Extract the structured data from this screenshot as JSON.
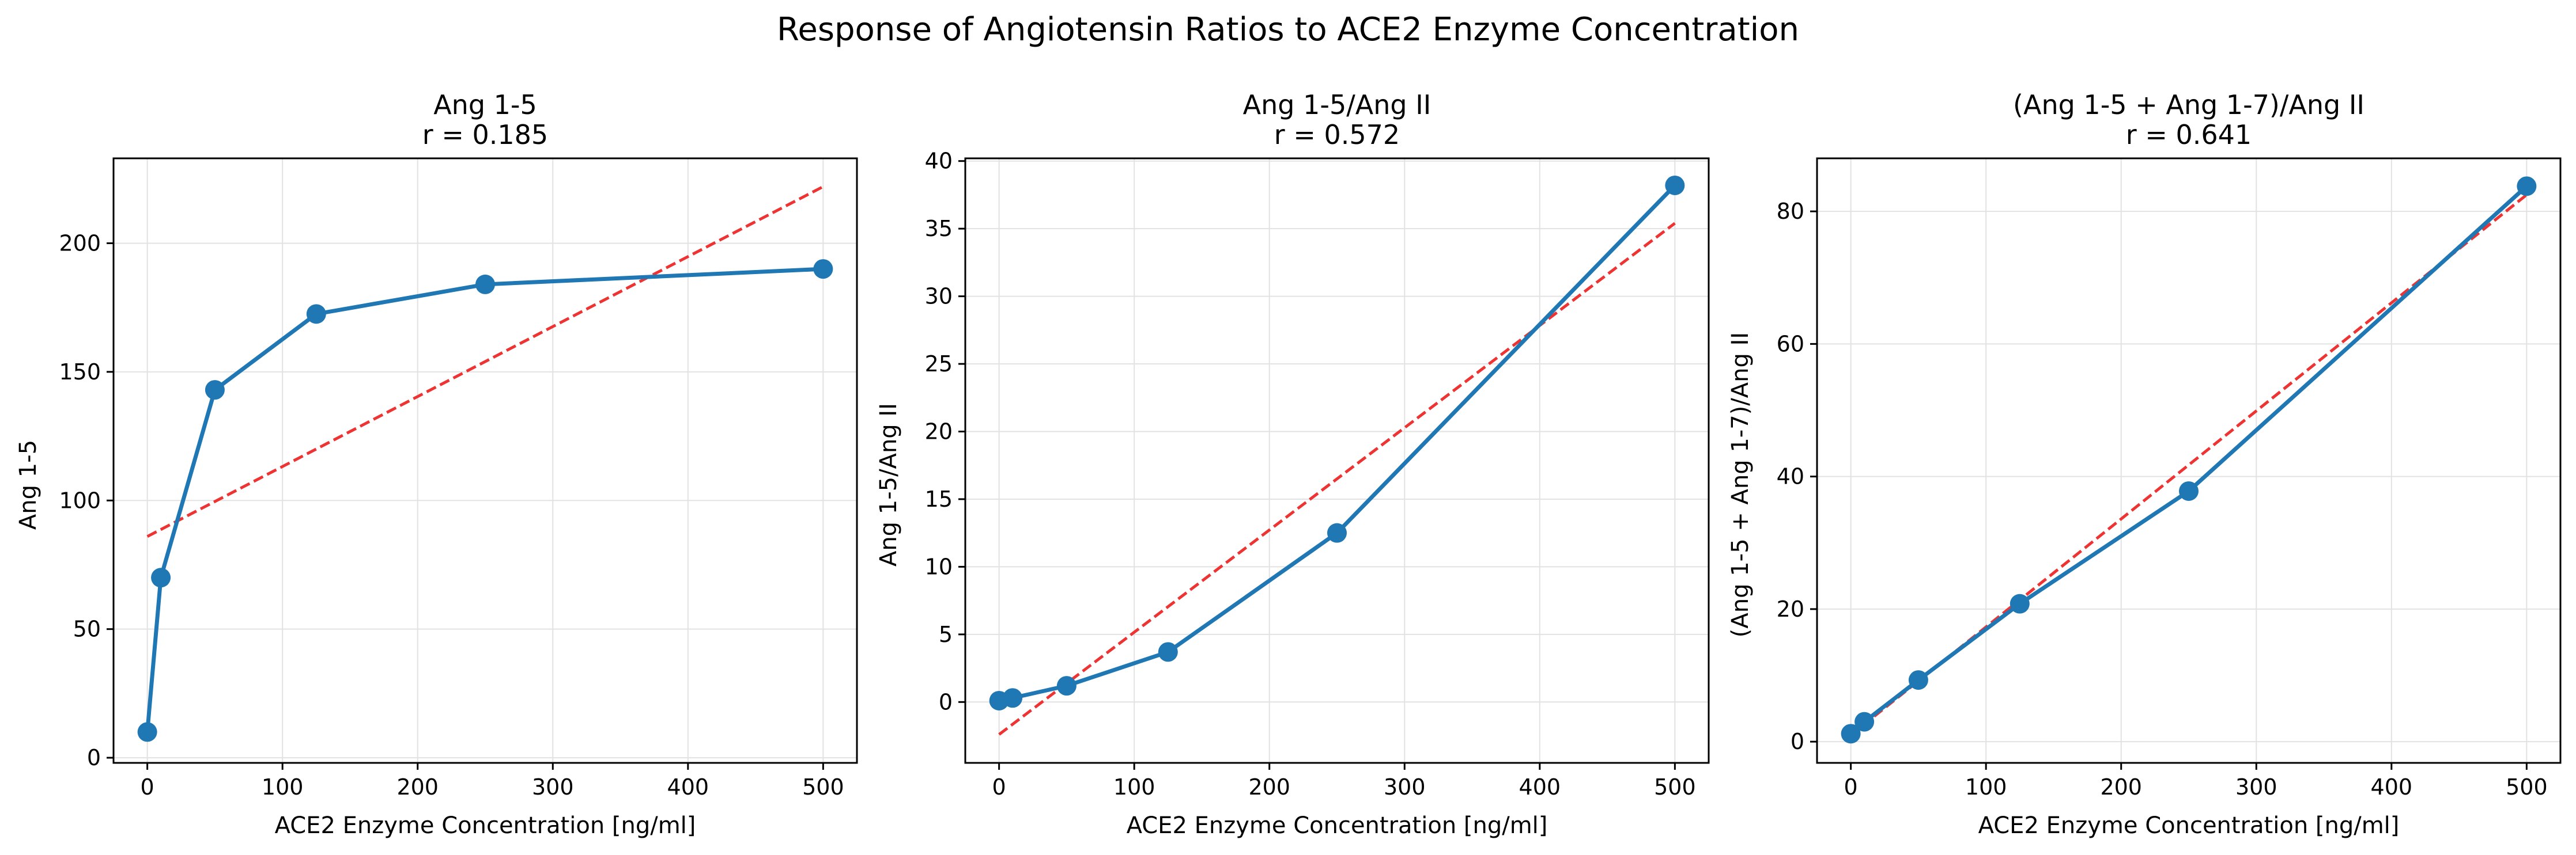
{
  "suptitle": "Response of Angiotensin Ratios to ACE2 Enzyme Concentration",
  "colors": {
    "line": "#1f77b4",
    "fit": "#ee3333",
    "grid": "#e2e2e2",
    "axis": "#000000"
  },
  "panels": [
    {
      "title_line1": "Ang 1-5",
      "title_line2": "r = 0.185",
      "xlabel": "ACE2 Enzyme Concentration [ng/ml]",
      "ylabel": "Ang 1-5"
    },
    {
      "title_line1": "Ang 1-5/Ang II",
      "title_line2": "r = 0.572",
      "xlabel": "ACE2 Enzyme Concentration [ng/ml]",
      "ylabel": "Ang 1-5/Ang II"
    },
    {
      "title_line1": "(Ang 1-5 + Ang 1-7)/Ang II",
      "title_line2": "r = 0.641",
      "xlabel": "ACE2 Enzyme Concentration [ng/ml]",
      "ylabel": "(Ang 1-5 + Ang 1-7)/Ang II"
    }
  ],
  "chart_data": [
    {
      "type": "line",
      "title": "Ang 1-5\nr = 0.185",
      "xlabel": "ACE2 Enzyme Concentration [ng/ml]",
      "ylabel": "Ang 1-5",
      "x": [
        0,
        10,
        50,
        125,
        250,
        500
      ],
      "series": [
        {
          "values": [
            10,
            70,
            143,
            172.5,
            184,
            190
          ]
        }
      ],
      "trendline": {
        "x": [
          0,
          500
        ],
        "y": [
          86,
          222
        ]
      },
      "xlim": [
        -25,
        525
      ],
      "ylim": [
        -2,
        233
      ],
      "xticks": [
        0,
        100,
        200,
        300,
        400,
        500
      ],
      "yticks": [
        0,
        50,
        100,
        150,
        200
      ],
      "grid": true
    },
    {
      "type": "line",
      "title": "Ang 1-5/Ang II\nr = 0.572",
      "xlabel": "ACE2 Enzyme Concentration [ng/ml]",
      "ylabel": "Ang 1-5/Ang II",
      "x": [
        0,
        10,
        50,
        125,
        250,
        500
      ],
      "series": [
        {
          "values": [
            0.1,
            0.3,
            1.2,
            3.7,
            12.5,
            38.2
          ]
        }
      ],
      "trendline": {
        "x": [
          0,
          500
        ],
        "y": [
          -2.4,
          35.4
        ]
      },
      "xlim": [
        -25,
        525
      ],
      "ylim": [
        -4.5,
        40.2
      ],
      "xticks": [
        0,
        100,
        200,
        300,
        400,
        500
      ],
      "yticks": [
        0,
        5,
        10,
        15,
        20,
        25,
        30,
        35,
        40
      ],
      "grid": true
    },
    {
      "type": "line",
      "title": "(Ang 1-5 + Ang 1-7)/Ang II\nr = 0.641",
      "xlabel": "ACE2 Enzyme Concentration [ng/ml]",
      "ylabel": "(Ang 1-5 + Ang 1-7)/Ang II",
      "x": [
        0,
        10,
        50,
        125,
        250,
        500
      ],
      "series": [
        {
          "values": [
            1.2,
            3,
            9.3,
            20.8,
            37.8,
            83.8
          ]
        }
      ],
      "trendline": {
        "x": [
          0,
          500
        ],
        "y": [
          1,
          82.5
        ]
      },
      "xlim": [
        -25,
        525
      ],
      "ylim": [
        -3.2,
        88
      ],
      "xticks": [
        0,
        100,
        200,
        300,
        400,
        500
      ],
      "yticks": [
        0,
        20,
        40,
        60,
        80
      ],
      "grid": true
    }
  ]
}
